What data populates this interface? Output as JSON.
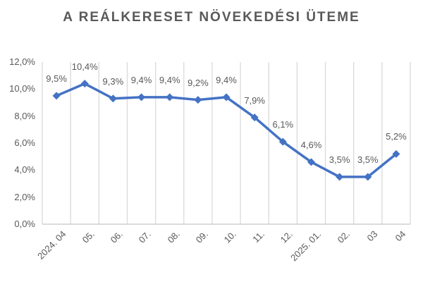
{
  "chart_data": {
    "type": "line",
    "title": "A REÁLKERESET NÖVEKEDÉSI ÜTEME",
    "categories": [
      "2024. 04",
      "05.",
      "06.",
      "07.",
      "08.",
      "09.",
      "10.",
      "11.",
      "12.",
      "2025. 01.",
      "02.",
      "03",
      "04"
    ],
    "values": [
      9.5,
      10.4,
      9.3,
      9.4,
      9.4,
      9.2,
      9.4,
      7.9,
      6.1,
      4.6,
      3.5,
      3.5,
      5.2
    ],
    "data_labels": [
      "9,5%",
      "10,4%",
      "9,3%",
      "9,4%",
      "9,4%",
      "9,2%",
      "9,4%",
      "7,9%",
      "6,1%",
      "4,6%",
      "3,5%",
      "3,5%",
      "5,2%"
    ],
    "y_tick_labels": [
      "12,0%",
      "10,0%",
      "8,0%",
      "6,0%",
      "4,0%",
      "2,0%",
      "0,0%"
    ],
    "y_tick_values": [
      12,
      10,
      8,
      6,
      4,
      2,
      0
    ],
    "ylim": [
      0,
      12
    ],
    "grid": "vertical-only",
    "legend": "none",
    "marker": "diamond",
    "colors": {
      "series_line": "#4472C4",
      "marker": "#4472C4",
      "text_gray": "#595959",
      "gridline": "#D9D9D9",
      "axis_line": "#C6C6C6",
      "background": "#FFFFFF"
    }
  }
}
